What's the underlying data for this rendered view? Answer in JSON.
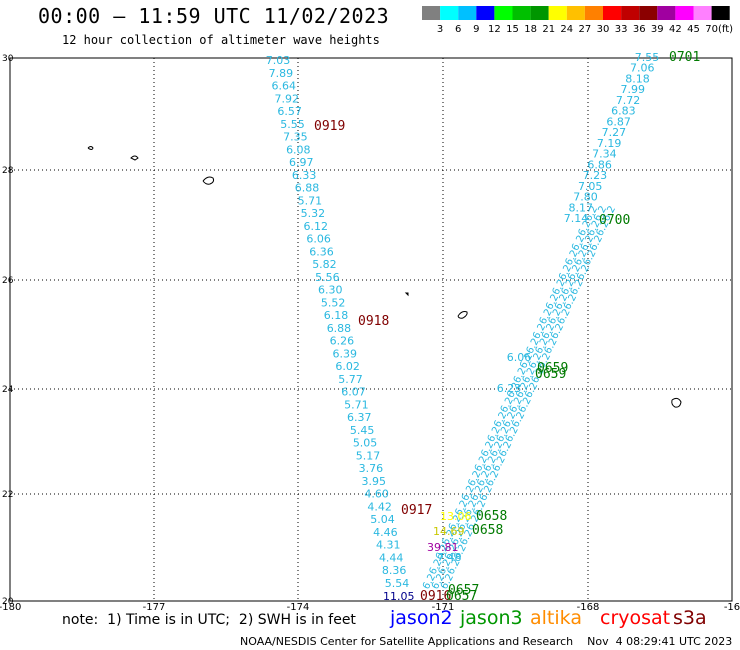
{
  "header": {
    "title": "00:00 – 11:59 UTC 11/02/2023",
    "subtitle": "12 hour collection of altimeter wave heights"
  },
  "legend": {
    "colors": [
      "#808080",
      "#00ffff",
      "#00c0ff",
      "#0000ff",
      "#00ff00",
      "#00c000",
      "#009600",
      "#ffff00",
      "#ffc000",
      "#ff8000",
      "#ff0000",
      "#c00000",
      "#8b0000",
      "#a000a0",
      "#ff00ff",
      "#ff80ff",
      "#000000"
    ],
    "ticks": [
      "3",
      "6",
      "9",
      "12",
      "15",
      "18",
      "21",
      "24",
      "27",
      "30",
      "33",
      "36",
      "39",
      "42",
      "45",
      "70"
    ],
    "unit": "(ft)"
  },
  "map": {
    "x_ticks": [
      "-180",
      "-177",
      "-174",
      "-171",
      "-168",
      "-16"
    ],
    "y_ticks": [
      "30",
      "28",
      "26",
      "24",
      "22",
      "20"
    ],
    "color_cyan": "#2ab8e0",
    "color_maroon": "#800000",
    "color_green": "#007a00",
    "left_track": [
      "7.03",
      "7.89",
      "6.64",
      "7.92",
      "6.57",
      "5.55",
      "7.35",
      "6.08",
      "6.97",
      "6.33",
      "6.88",
      "5.71",
      "5.32",
      "6.12",
      "6.06",
      "6.36",
      "5.82",
      "5.56",
      "6.30",
      "5.52",
      "6.18",
      "6.88",
      "6.26",
      "6.39",
      "6.02",
      "5.77",
      "6.07",
      "5.71",
      "6.37",
      "5.45",
      "5.05",
      "5.17",
      "3.76",
      "3.95",
      "4.60",
      "4.42",
      "5.04",
      "4.46",
      "4.31",
      "4.44",
      "8.36",
      "5.54"
    ],
    "right_track": [
      "7.55",
      "7.06",
      "8.18",
      "7.99",
      "7.72",
      "6.83",
      "6.87",
      "7.27",
      "7.19",
      "7.34",
      "6.86",
      "7.23",
      "7.05",
      "7.80",
      "8.17",
      "7.14"
    ],
    "right_mid": [
      "6.06",
      "6.23"
    ],
    "bottom_values": {
      "v1105": "11.05",
      "v1306": "13.06",
      "v1469": "14.69",
      "v3981": "39.81",
      "v748": "7.48"
    },
    "time_labels": {
      "t0919": "0919",
      "t0918": "0918",
      "t0917": "0917",
      "t0916": "0916",
      "t0701": "0701",
      "t0700": "0700",
      "t0659a": "0659",
      "t0659b": "0659",
      "t0658a": "0658",
      "t0658b": "0658",
      "t0657a": "0657",
      "t0657b": "0657"
    }
  },
  "note": "note:  1) Time is in UTC;  2) SWH is in feet",
  "satellites": {
    "jason2": {
      "label": "jason2",
      "color": "#0000ff"
    },
    "jason3": {
      "label": "jason3",
      "color": "#009600"
    },
    "altika": {
      "label": "altika",
      "color": "#ff8c00"
    },
    "cryosat": {
      "label": "cryosat",
      "color": "#ff0000"
    },
    "s3a": {
      "label": "s3a",
      "color": "#800000"
    }
  },
  "footer": "NOAA/NESDIS Center for Satellite Applications and Research    Nov  4 08:29:41 UTC 2023"
}
